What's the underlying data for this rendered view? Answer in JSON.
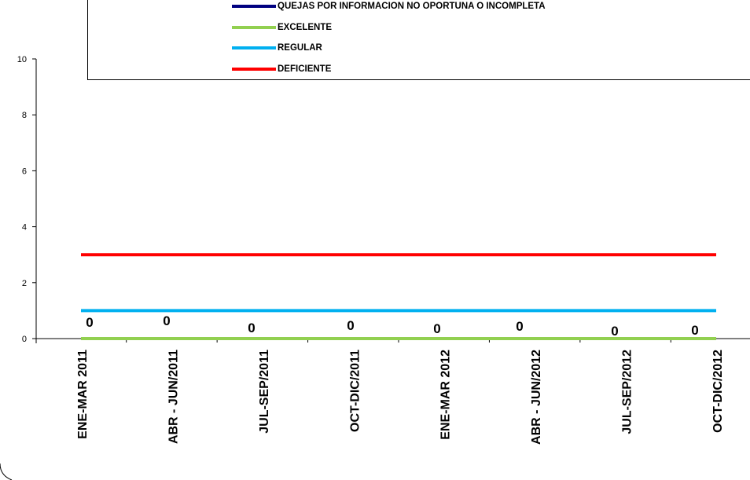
{
  "chart_data": {
    "type": "line",
    "categories": [
      "ENE-MAR 2011",
      "ABR - JUN/2011",
      "JUL-SEP/2011",
      "OCT-DIC/2011",
      "ENE-MAR 2012",
      "ABR - JUN/2012",
      "JUL-SEP/2012",
      "OCT-DIC/2012"
    ],
    "series": [
      {
        "name": "QUEJAS POR INFORMACION NO OPORTUNA O INCOMPLETA",
        "values": [
          0,
          0,
          0,
          0,
          0,
          0,
          0,
          0
        ],
        "color": "#000080",
        "data_labels": [
          "0",
          "0",
          "0",
          "0",
          "0",
          "0",
          "0",
          "0"
        ]
      },
      {
        "name": "EXCELENTE",
        "values": [
          0,
          0,
          0,
          0,
          0,
          0,
          0,
          0
        ],
        "color": "#92D050"
      },
      {
        "name": "REGULAR",
        "values": [
          1,
          1,
          1,
          1,
          1,
          1,
          1,
          1
        ],
        "color": "#00B0F0"
      },
      {
        "name": "DEFICIENTE",
        "values": [
          3,
          3,
          3,
          3,
          3,
          3,
          3,
          3
        ],
        "color": "#FF0000"
      }
    ],
    "yticks": [
      "0",
      "2",
      "4",
      "6",
      "8",
      "10"
    ],
    "ylim": [
      0,
      10
    ],
    "grid": false,
    "legend_position": "top"
  }
}
